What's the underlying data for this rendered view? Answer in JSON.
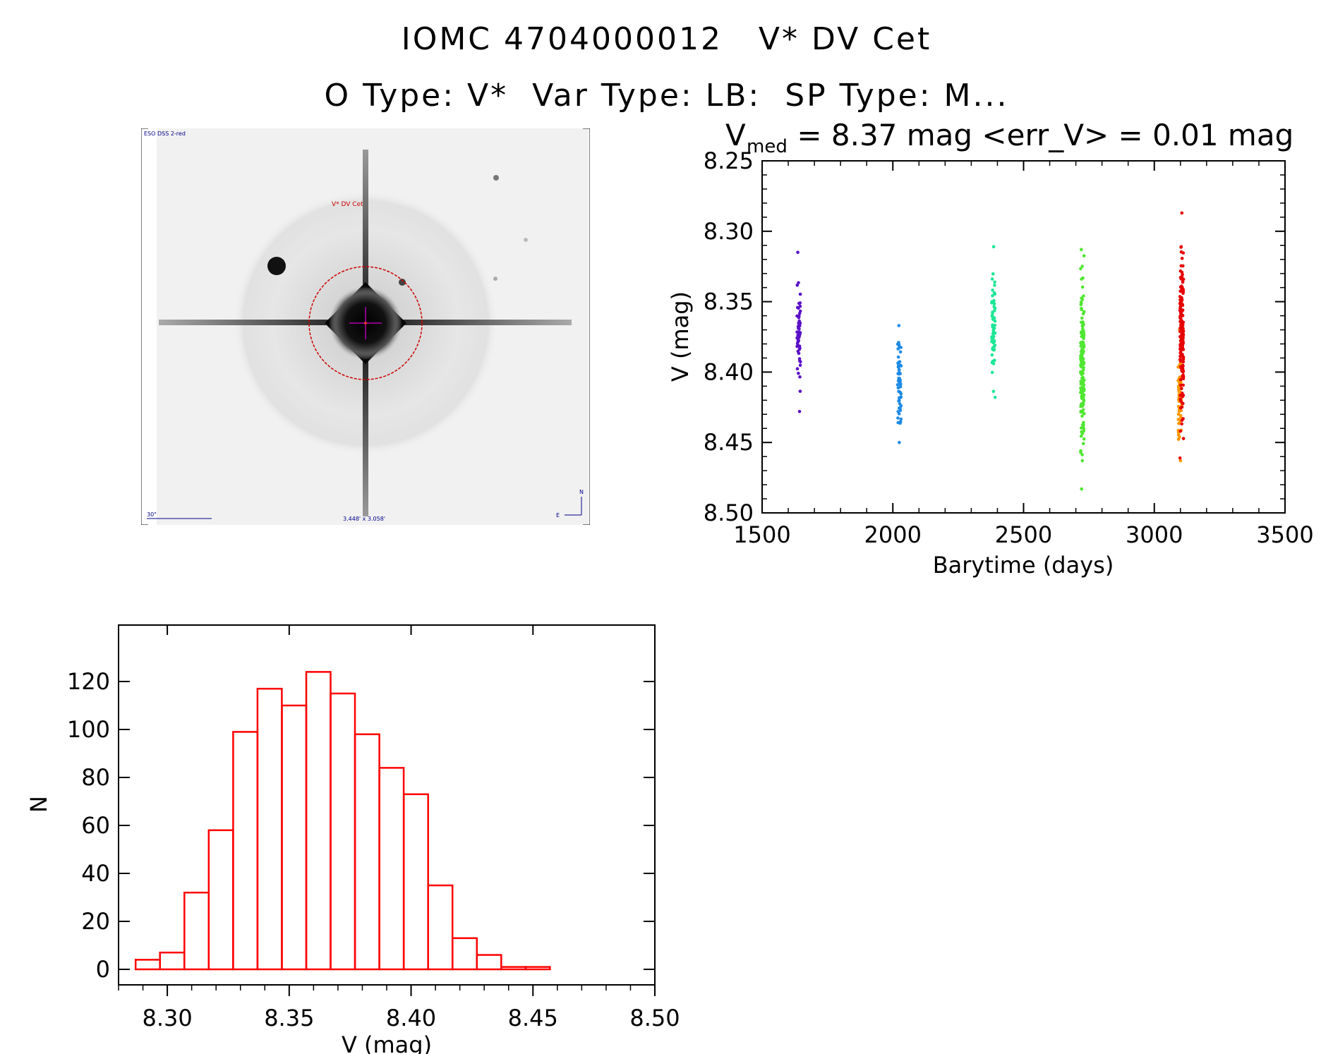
{
  "title_line1": "IOMC 4704000012   V* DV Cet",
  "title_line2": "O Type: V*  Var Type: LB:  SP Type: M...",
  "finder": {
    "survey_label": "ESO DSS 2-red",
    "target_label": "V* DV Cet",
    "scale_label": "30\"",
    "fov_label": "3.448' x 3.058'",
    "north_label": "N",
    "east_label": "E",
    "circle_color": "#cc0000",
    "crosshair_color": "#b000b0",
    "label_color": "#00008b"
  },
  "chart_data": [
    {
      "type": "scatter",
      "title_main": "V",
      "title_sub": "med",
      "title_rest": " = 8.37 mag <err_V> = 0.01 mag",
      "xlabel": "Barytime (days)",
      "ylabel": "V (mag)",
      "xlim": [
        1500,
        3500
      ],
      "ylim": [
        8.25,
        8.5
      ],
      "y_inverted": true,
      "xticks": [
        "1500",
        "2000",
        "2500",
        "3000",
        "3500"
      ],
      "yticks": [
        "8.25",
        "8.30",
        "8.35",
        "8.40",
        "8.45",
        "8.50"
      ],
      "series": [
        {
          "color": "#5a10c8",
          "x_center": 1640,
          "y_range": [
            8.315,
            8.428
          ]
        },
        {
          "color": "#1e8ae6",
          "x_center": 2025,
          "y_range": [
            8.367,
            8.45
          ]
        },
        {
          "color": "#1ee696",
          "x_center": 2385,
          "y_range": [
            8.311,
            8.418
          ]
        },
        {
          "color": "#50e632",
          "x_center": 2725,
          "y_range": [
            8.313,
            8.483
          ]
        },
        {
          "color": "#ff9600",
          "x_center": 3098,
          "y_range": [
            8.37,
            8.463
          ]
        },
        {
          "color": "#e60000",
          "x_center": 3105,
          "y_range": [
            8.287,
            8.461
          ]
        }
      ]
    },
    {
      "type": "bar",
      "histogram": true,
      "xlabel": "V (mag)",
      "ylabel": "N",
      "xlim": [
        8.28,
        8.5
      ],
      "ylim": [
        0,
        130
      ],
      "xticks": [
        "8.30",
        "8.35",
        "8.40",
        "8.45",
        "8.50"
      ],
      "yticks": [
        "0",
        "20",
        "40",
        "60",
        "80",
        "100",
        "120"
      ],
      "bin_width": 0.01,
      "bin_starts": [
        8.287,
        8.297,
        8.307,
        8.317,
        8.327,
        8.337,
        8.347,
        8.357,
        8.367,
        8.377,
        8.387,
        8.397,
        8.407,
        8.417,
        8.427,
        8.437,
        8.447,
        8.457,
        8.467,
        8.477
      ],
      "values": [
        4,
        7,
        32,
        58,
        99,
        117,
        110,
        124,
        115,
        98,
        84,
        73,
        35,
        13,
        6,
        1,
        1,
        0,
        0,
        0
      ],
      "bar_color": "#ff0000"
    }
  ]
}
